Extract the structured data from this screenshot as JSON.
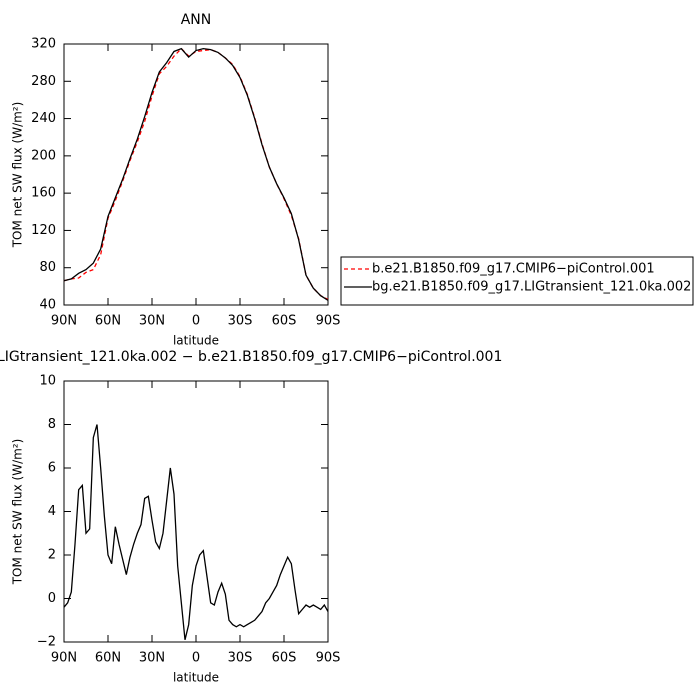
{
  "chart_data": [
    {
      "type": "line",
      "title": "ANN",
      "xlabel": "latitude",
      "ylabel": "TOM net SW flux (W/m²)",
      "x": [
        90,
        85,
        80,
        75,
        70,
        65,
        60,
        55,
        50,
        45,
        40,
        35,
        30,
        25,
        20,
        15,
        10,
        5,
        0,
        -5,
        -10,
        -15,
        -20,
        -25,
        -30,
        -35,
        -40,
        -45,
        -50,
        -55,
        -60,
        -65,
        -70,
        -75,
        -80,
        -85,
        -90
      ],
      "series": [
        {
          "name": "b.e21.B1850.f09_g17.CMIP6−piControl.001",
          "color": "#ff0000",
          "line_style": "dashed",
          "values": [
            66,
            68,
            69,
            75,
            78,
            94,
            133,
            152,
            173,
            195,
            215,
            237,
            264,
            288,
            296,
            307,
            315,
            307,
            312,
            313,
            314,
            311,
            305,
            298,
            285,
            266,
            241,
            213,
            188,
            170,
            154,
            136,
            111,
            72,
            58,
            50,
            46
          ]
        },
        {
          "name": "bg.e21.B1850.f09_g17.LIGtransient_121.0ka.002",
          "color": "#000000",
          "line_style": "solid",
          "values": [
            66,
            68,
            74,
            78,
            85,
            100,
            135,
            155,
            175,
            197,
            218,
            242,
            268,
            290,
            300,
            312,
            315,
            306,
            313,
            315,
            314,
            311,
            305,
            297,
            284,
            265,
            240,
            212,
            188,
            170,
            155,
            138,
            110,
            72,
            58,
            50,
            45
          ]
        }
      ],
      "xlim": [
        90,
        -90
      ],
      "xticks": [
        {
          "value": 90,
          "label": "90N"
        },
        {
          "value": 60,
          "label": "60N"
        },
        {
          "value": 30,
          "label": "30N"
        },
        0,
        {
          "value": -30,
          "label": "30S"
        },
        {
          "value": -60,
          "label": "60S"
        },
        {
          "value": -90,
          "label": "90S"
        }
      ],
      "ylim": [
        40,
        320
      ],
      "yticks": [
        40,
        80,
        120,
        160,
        200,
        240,
        280,
        320
      ],
      "legend": "right"
    },
    {
      "type": "line",
      "title": "LIGtransient_121.0ka.002 − b.e21.B1850.f09_g17.CMIP6−piControl.001",
      "xlabel": "latitude",
      "ylabel": "TOM net SW flux (W/m²)",
      "x": [
        90,
        87.5,
        85,
        82.5,
        80,
        77.5,
        75,
        72.5,
        70,
        67.5,
        65,
        62.5,
        60,
        57.5,
        55,
        52.5,
        50,
        47.5,
        45,
        42.5,
        40,
        37.5,
        35,
        32.5,
        30,
        27.5,
        25,
        22.5,
        20,
        17.5,
        15,
        12.5,
        10,
        7.5,
        5,
        2.5,
        0,
        -2.5,
        -5,
        -7.5,
        -10,
        -12.5,
        -15,
        -17.5,
        -20,
        -22.5,
        -25,
        -27.5,
        -30,
        -32.5,
        -35,
        -37.5,
        -40,
        -42.5,
        -45,
        -47.5,
        -50,
        -52.5,
        -55,
        -57.5,
        -60,
        -62.5,
        -65,
        -67.5,
        -70,
        -72.5,
        -75,
        -77.5,
        -80,
        -82.5,
        -85,
        -87.5,
        -90
      ],
      "values": [
        -0.4,
        -0.2,
        0.3,
        2.5,
        5.0,
        5.2,
        3.0,
        3.2,
        7.4,
        8.0,
        6.0,
        3.8,
        2.0,
        1.6,
        3.3,
        2.5,
        1.8,
        1.1,
        1.9,
        2.5,
        3.0,
        3.4,
        4.6,
        4.7,
        3.6,
        2.6,
        2.3,
        3.0,
        4.5,
        6.0,
        4.8,
        1.5,
        -0.2,
        -1.9,
        -1.2,
        0.6,
        1.5,
        2.0,
        2.2,
        1.0,
        -0.2,
        -0.3,
        0.3,
        0.7,
        0.2,
        -1.0,
        -1.2,
        -1.3,
        -1.2,
        -1.3,
        -1.2,
        -1.1,
        -1.0,
        -0.8,
        -0.6,
        -0.2,
        0.0,
        0.3,
        0.6,
        1.1,
        1.5,
        1.9,
        1.6,
        0.4,
        -0.7,
        -0.5,
        -0.3,
        -0.4,
        -0.3,
        -0.4,
        -0.5,
        -0.3,
        -0.6
      ],
      "color": "#000000",
      "line_style": "solid",
      "xlim": [
        90,
        -90
      ],
      "xticks": [
        {
          "value": 90,
          "label": "90N"
        },
        {
          "value": 60,
          "label": "60N"
        },
        {
          "value": 30,
          "label": "30N"
        },
        0,
        {
          "value": -30,
          "label": "30S"
        },
        {
          "value": -60,
          "label": "60S"
        },
        {
          "value": -90,
          "label": "90S"
        }
      ],
      "ylim": [
        -2,
        10
      ],
      "yticks": [
        {
          "value": -2,
          "label": "−2"
        },
        0,
        2,
        4,
        6,
        8,
        10
      ]
    }
  ]
}
